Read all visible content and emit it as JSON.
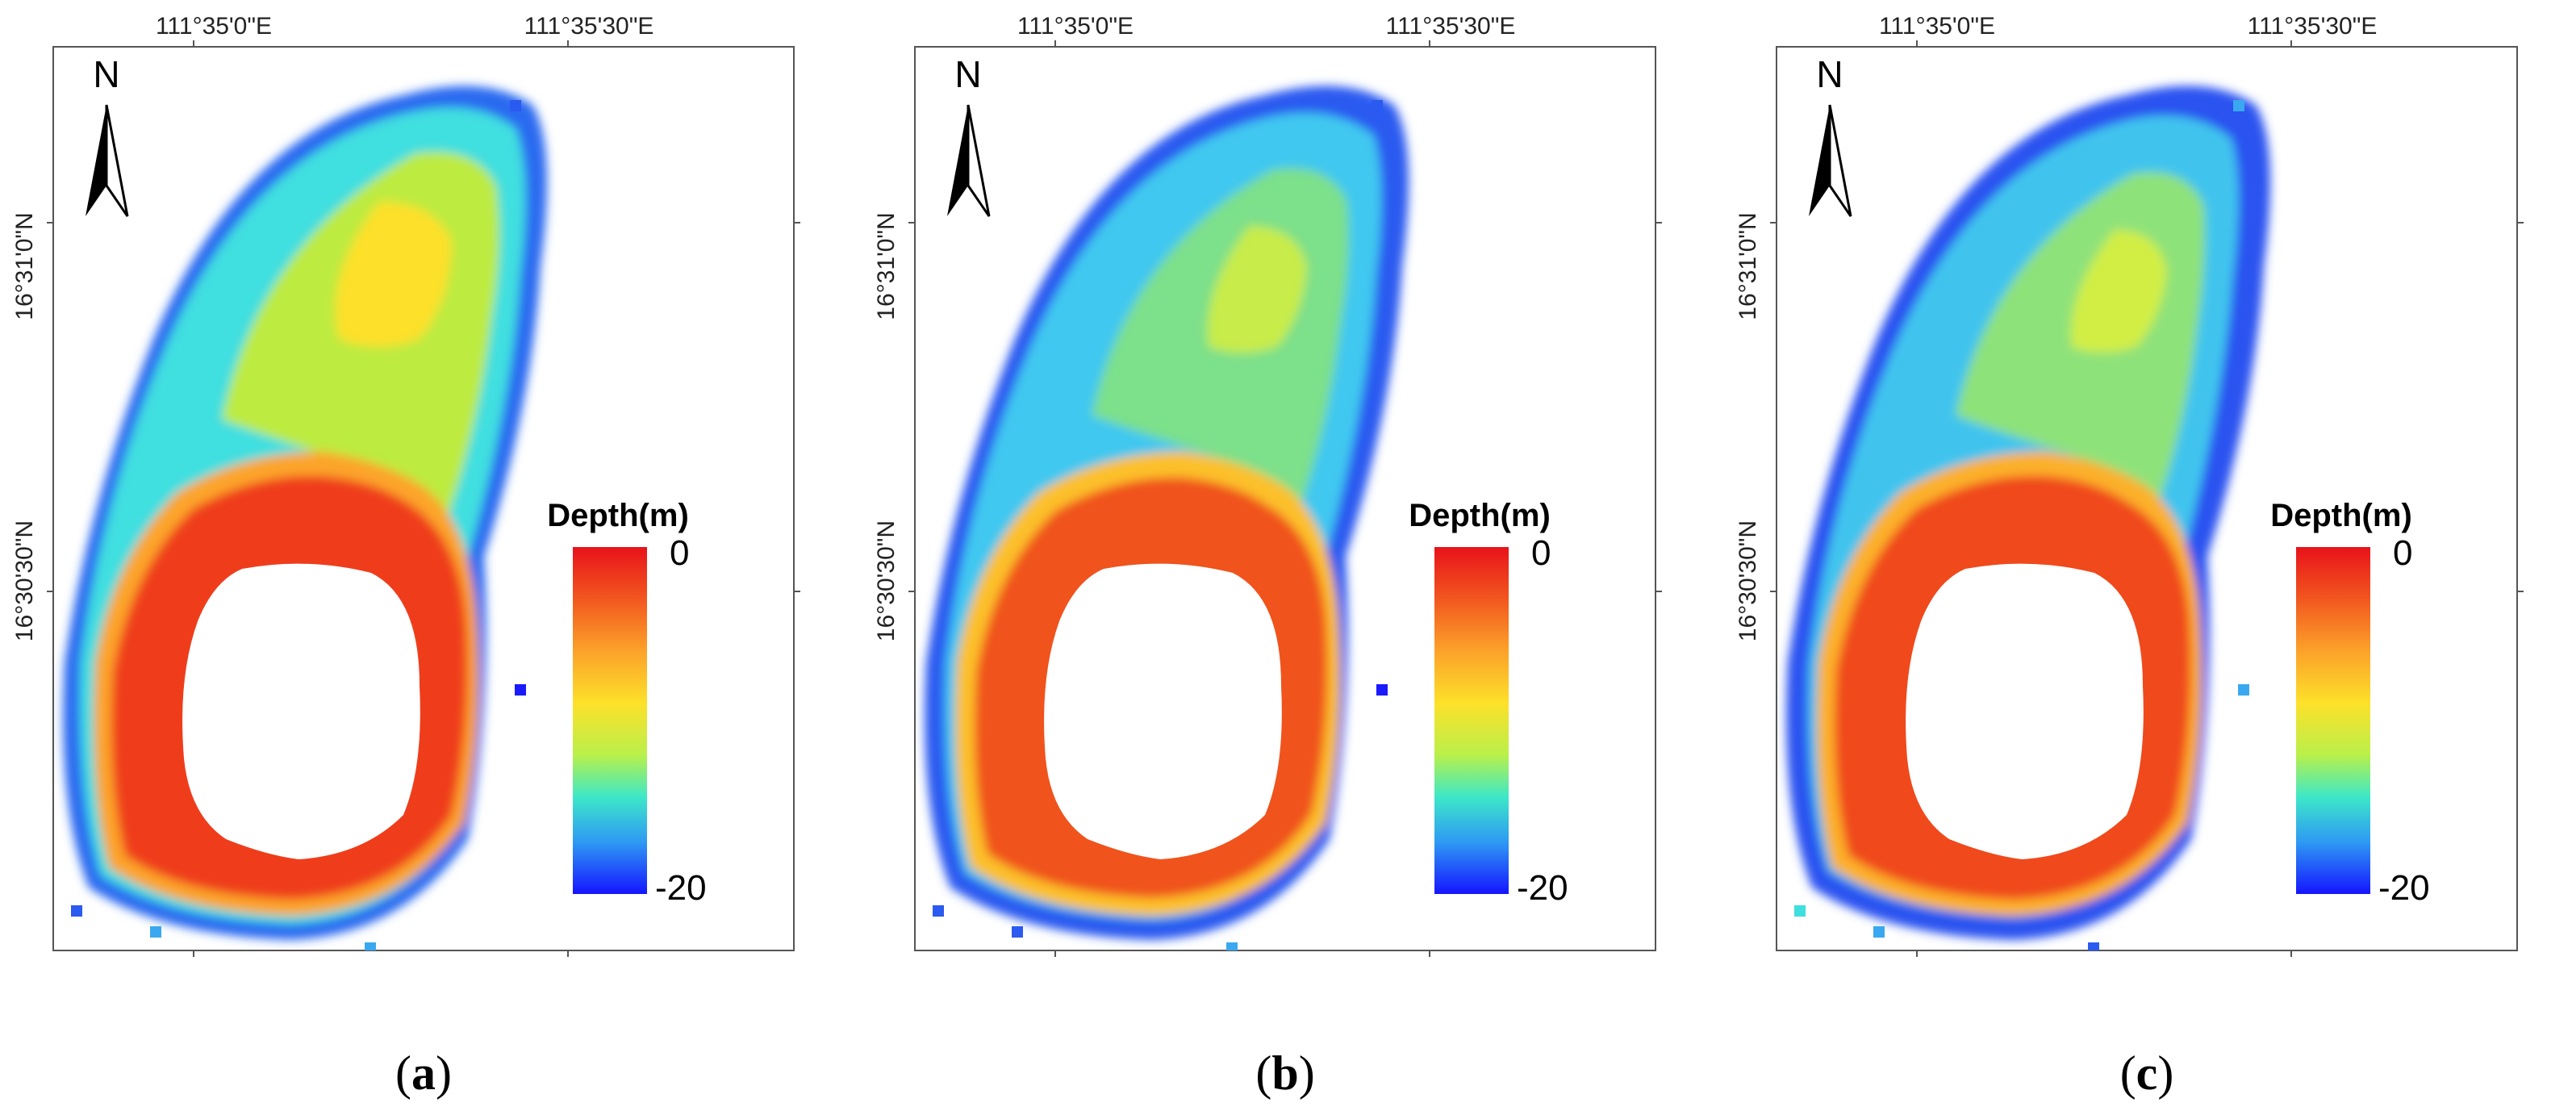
{
  "figure": {
    "panels": [
      {
        "id": "a",
        "caption_open": "(",
        "caption_letter": "a",
        "caption_close": ")",
        "lon_labels": [
          "111°35'0\"E",
          "111°35'30\"E"
        ],
        "lat_labels": [
          "16°31'0\"N",
          "16°30'30\"N"
        ],
        "north_label": "N",
        "legend": {
          "title": "Depth(m)",
          "max_label": "0",
          "min_label": "-20"
        },
        "shallowness": 1.0
      },
      {
        "id": "b",
        "caption_open": "(",
        "caption_letter": "b",
        "caption_close": ")",
        "lon_labels": [
          "111°35'0\"E",
          "111°35'30\"E"
        ],
        "lat_labels": [
          "16°31'0\"N",
          "16°30'30\"N"
        ],
        "north_label": "N",
        "legend": {
          "title": "Depth(m)",
          "max_label": "0",
          "min_label": "-20"
        },
        "shallowness": 0.85
      },
      {
        "id": "c",
        "caption_open": "(",
        "caption_letter": "c",
        "caption_close": ")",
        "lon_labels": [
          "111°35'0\"E",
          "111°35'30\"E"
        ],
        "lat_labels": [
          "16°31'0\"N",
          "16°30'30\"N"
        ],
        "north_label": "N",
        "legend": {
          "title": "Depth(m)",
          "max_label": "0",
          "min_label": "-20"
        },
        "shallowness": 0.9
      }
    ],
    "colormap": [
      "#d7191c",
      "#f15a24",
      "#fd9a2b",
      "#fcd92a",
      "#d4f03a",
      "#8be07a",
      "#3ee0d0",
      "#3aa8f0",
      "#2b5af0",
      "#1a1aff"
    ],
    "depth_range_m": [
      -20,
      0
    ]
  }
}
